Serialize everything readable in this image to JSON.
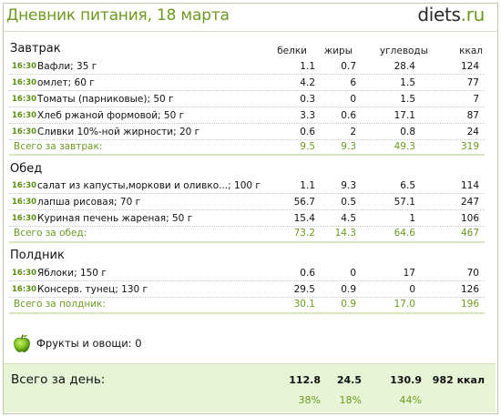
{
  "header": {
    "title": "Дневник питания, 18 марта",
    "brand_main": "diets",
    "brand_suffix": ".ru"
  },
  "columns": {
    "protein": "белки",
    "fat": "жиры",
    "carbs": "углеводы",
    "kcal": "ккал"
  },
  "meals": [
    {
      "title": "Завтрак",
      "items": [
        {
          "time": "16:30",
          "name": "Вафли; 35 г",
          "protein": "1.1",
          "fat": "0.7",
          "carbs": "28.4",
          "kcal": "124"
        },
        {
          "time": "16:30",
          "name": "омлет; 60 г",
          "protein": "4.2",
          "fat": "6",
          "carbs": "1.5",
          "kcal": "77"
        },
        {
          "time": "16:30",
          "name": "Томаты (парниковые); 50 г",
          "protein": "0.3",
          "fat": "0",
          "carbs": "1.5",
          "kcal": "7"
        },
        {
          "time": "16:30",
          "name": "Хлеб ржаной формовой; 50 г",
          "protein": "3.3",
          "fat": "0.6",
          "carbs": "17.1",
          "kcal": "87"
        },
        {
          "time": "16:30",
          "name": "Сливки 10%-ной жирности; 20 г",
          "protein": "0.6",
          "fat": "2",
          "carbs": "0.8",
          "kcal": "24"
        }
      ],
      "total": {
        "label": "Всего за завтрак:",
        "protein": "9.5",
        "fat": "9.3",
        "carbs": "49.3",
        "kcal": "319"
      }
    },
    {
      "title": "Обед",
      "items": [
        {
          "time": "16:30",
          "name": "салат из капусты,моркови и оливко...; 100 г",
          "protein": "1.1",
          "fat": "9.3",
          "carbs": "6.5",
          "kcal": "114"
        },
        {
          "time": "16:30",
          "name": "лапша рисовая; 70 г",
          "protein": "56.7",
          "fat": "0.5",
          "carbs": "57.1",
          "kcal": "247"
        },
        {
          "time": "16:30",
          "name": "Куриная печень жареная; 50 г",
          "protein": "15.4",
          "fat": "4.5",
          "carbs": "1",
          "kcal": "106"
        }
      ],
      "total": {
        "label": "Всего за обед:",
        "protein": "73.2",
        "fat": "14.3",
        "carbs": "64.6",
        "kcal": "467"
      }
    },
    {
      "title": "Полдник",
      "items": [
        {
          "time": "16:30",
          "name": "Яблоки; 150 г",
          "protein": "0.6",
          "fat": "0",
          "carbs": "17",
          "kcal": "70"
        },
        {
          "time": "16:30",
          "name": "Консерв. тунец; 130 г",
          "protein": "29.5",
          "fat": "0.9",
          "carbs": "0",
          "kcal": "126"
        }
      ],
      "total": {
        "label": "Всего за полдник:",
        "protein": "30.1",
        "fat": "0.9",
        "carbs": "17.0",
        "kcal": "196"
      }
    }
  ],
  "fruits": {
    "label": "Фрукты и овощи: 0",
    "icon": "apple-icon",
    "icon_color": "#7cbf1f"
  },
  "day_total": {
    "label": "Всего за день:",
    "protein": "112.8",
    "fat": "24.5",
    "carbs": "130.9",
    "kcal": "982 ккал",
    "protein_pct": "38%",
    "fat_pct": "18%",
    "carbs_pct": "44%"
  },
  "colors": {
    "accent": "#6b9a1e",
    "total_bg": "#e8f4d6"
  }
}
